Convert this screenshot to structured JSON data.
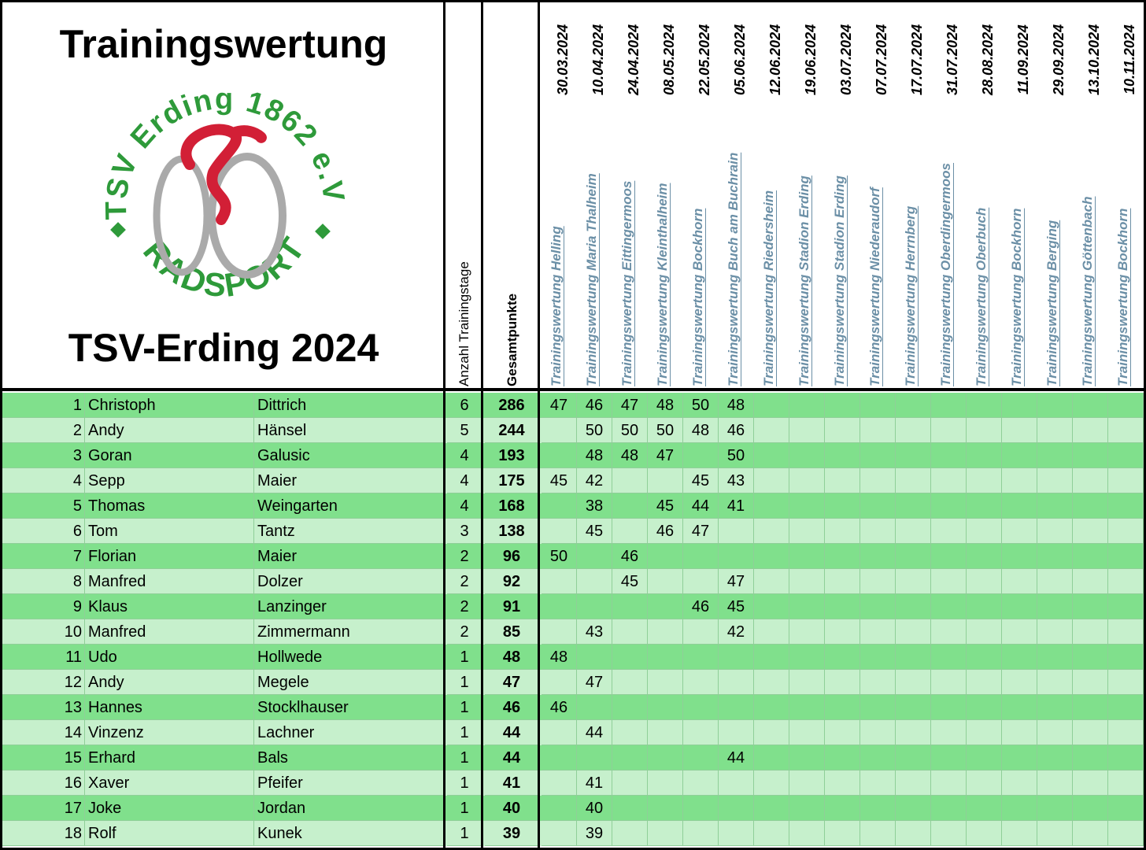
{
  "header": {
    "title": "Trainingswertung",
    "subtitle": "TSV-Erding 2024",
    "logo": {
      "top_text": "TSV Erding 1862 e.V.",
      "bottom_text": "RADSPORT"
    }
  },
  "table": {
    "columns": {
      "count": "Anzahl Trainingstage",
      "total": "Gesamtpunkte"
    },
    "events": [
      {
        "date": "30.03.2024",
        "name": "Trainingswertung Helling"
      },
      {
        "date": "10.04.2024",
        "name": "Trainingswertung Maria Thalheim"
      },
      {
        "date": "24.04.2024",
        "name": "Trainingswertung Eittingermoos"
      },
      {
        "date": "08.05.2024",
        "name": "Trainingswertung Kleinthalheim"
      },
      {
        "date": "22.05.2024",
        "name": "Trainingswertung Bockhorn"
      },
      {
        "date": "05.06.2024",
        "name": "Trainingswertung Buch am Buchrain"
      },
      {
        "date": "12.06.2024",
        "name": "Trainingswertung Riedersheim"
      },
      {
        "date": "19.06.2024",
        "name": "Trainingswertung Stadion Erding"
      },
      {
        "date": "03.07.2024",
        "name": "Trainingswertung Stadion Erding"
      },
      {
        "date": "07.07.2024",
        "name": "Trainingswertung Niederaudorf"
      },
      {
        "date": "17.07.2024",
        "name": "Trainingswertung Herrnberg"
      },
      {
        "date": "31.07.2024",
        "name": "Trainingswertung Oberdingermoos"
      },
      {
        "date": "28.08.2024",
        "name": "Trainingswertung Oberbuch"
      },
      {
        "date": "11.09.2024",
        "name": "Trainingswertung Bockhorn"
      },
      {
        "date": "29.09.2024",
        "name": "Trainingswertung Berging"
      },
      {
        "date": "13.10.2024",
        "name": "Trainingswertung Göttenbach"
      },
      {
        "date": "10.11.2024",
        "name": "Trainingswertung Bockhorn"
      }
    ],
    "rows": [
      {
        "rank": 1,
        "first": "Christoph",
        "last": "Dittrich",
        "count": 6,
        "total": 286,
        "scores": [
          47,
          46,
          47,
          48,
          50,
          48,
          null,
          null,
          null,
          null,
          null,
          null,
          null,
          null,
          null,
          null,
          null
        ]
      },
      {
        "rank": 2,
        "first": "Andy",
        "last": "Hänsel",
        "count": 5,
        "total": 244,
        "scores": [
          null,
          50,
          50,
          50,
          48,
          46,
          null,
          null,
          null,
          null,
          null,
          null,
          null,
          null,
          null,
          null,
          null
        ]
      },
      {
        "rank": 3,
        "first": "Goran",
        "last": "Galusic",
        "count": 4,
        "total": 193,
        "scores": [
          null,
          48,
          48,
          47,
          null,
          50,
          null,
          null,
          null,
          null,
          null,
          null,
          null,
          null,
          null,
          null,
          null
        ]
      },
      {
        "rank": 4,
        "first": "Sepp",
        "last": "Maier",
        "count": 4,
        "total": 175,
        "scores": [
          45,
          42,
          null,
          null,
          45,
          43,
          null,
          null,
          null,
          null,
          null,
          null,
          null,
          null,
          null,
          null,
          null
        ]
      },
      {
        "rank": 5,
        "first": "Thomas",
        "last": "Weingarten",
        "count": 4,
        "total": 168,
        "scores": [
          null,
          38,
          null,
          45,
          44,
          41,
          null,
          null,
          null,
          null,
          null,
          null,
          null,
          null,
          null,
          null,
          null
        ]
      },
      {
        "rank": 6,
        "first": "Tom",
        "last": "Tantz",
        "count": 3,
        "total": 138,
        "scores": [
          null,
          45,
          null,
          46,
          47,
          null,
          null,
          null,
          null,
          null,
          null,
          null,
          null,
          null,
          null,
          null,
          null
        ]
      },
      {
        "rank": 7,
        "first": "Florian",
        "last": "Maier",
        "count": 2,
        "total": 96,
        "scores": [
          50,
          null,
          46,
          null,
          null,
          null,
          null,
          null,
          null,
          null,
          null,
          null,
          null,
          null,
          null,
          null,
          null
        ]
      },
      {
        "rank": 8,
        "first": "Manfred",
        "last": "Dolzer",
        "count": 2,
        "total": 92,
        "scores": [
          null,
          null,
          45,
          null,
          null,
          47,
          null,
          null,
          null,
          null,
          null,
          null,
          null,
          null,
          null,
          null,
          null
        ]
      },
      {
        "rank": 9,
        "first": "Klaus",
        "last": "Lanzinger",
        "count": 2,
        "total": 91,
        "scores": [
          null,
          null,
          null,
          null,
          46,
          45,
          null,
          null,
          null,
          null,
          null,
          null,
          null,
          null,
          null,
          null,
          null
        ]
      },
      {
        "rank": 10,
        "first": "Manfred",
        "last": "Zimmermann",
        "count": 2,
        "total": 85,
        "scores": [
          null,
          43,
          null,
          null,
          null,
          42,
          null,
          null,
          null,
          null,
          null,
          null,
          null,
          null,
          null,
          null,
          null
        ]
      },
      {
        "rank": 11,
        "first": "Udo",
        "last": "Hollwede",
        "count": 1,
        "total": 48,
        "scores": [
          48,
          null,
          null,
          null,
          null,
          null,
          null,
          null,
          null,
          null,
          null,
          null,
          null,
          null,
          null,
          null,
          null
        ]
      },
      {
        "rank": 12,
        "first": "Andy",
        "last": "Megele",
        "count": 1,
        "total": 47,
        "scores": [
          null,
          47,
          null,
          null,
          null,
          null,
          null,
          null,
          null,
          null,
          null,
          null,
          null,
          null,
          null,
          null,
          null
        ]
      },
      {
        "rank": 13,
        "first": "Hannes",
        "last": "Stocklhauser",
        "count": 1,
        "total": 46,
        "scores": [
          46,
          null,
          null,
          null,
          null,
          null,
          null,
          null,
          null,
          null,
          null,
          null,
          null,
          null,
          null,
          null,
          null
        ]
      },
      {
        "rank": 14,
        "first": "Vinzenz",
        "last": "Lachner",
        "count": 1,
        "total": 44,
        "scores": [
          null,
          44,
          null,
          null,
          null,
          null,
          null,
          null,
          null,
          null,
          null,
          null,
          null,
          null,
          null,
          null,
          null
        ]
      },
      {
        "rank": 15,
        "first": "Erhard",
        "last": "Bals",
        "count": 1,
        "total": 44,
        "scores": [
          null,
          null,
          null,
          null,
          null,
          44,
          null,
          null,
          null,
          null,
          null,
          null,
          null,
          null,
          null,
          null,
          null
        ]
      },
      {
        "rank": 16,
        "first": "Xaver",
        "last": "Pfeifer",
        "count": 1,
        "total": 41,
        "scores": [
          null,
          41,
          null,
          null,
          null,
          null,
          null,
          null,
          null,
          null,
          null,
          null,
          null,
          null,
          null,
          null,
          null
        ]
      },
      {
        "rank": 17,
        "first": "Joke",
        "last": "Jordan",
        "count": 1,
        "total": 40,
        "scores": [
          null,
          40,
          null,
          null,
          null,
          null,
          null,
          null,
          null,
          null,
          null,
          null,
          null,
          null,
          null,
          null,
          null
        ]
      },
      {
        "rank": 18,
        "first": "Rolf",
        "last": "Kunek",
        "count": 1,
        "total": 39,
        "scores": [
          null,
          39,
          null,
          null,
          null,
          null,
          null,
          null,
          null,
          null,
          null,
          null,
          null,
          null,
          null,
          null,
          null
        ]
      }
    ]
  }
}
